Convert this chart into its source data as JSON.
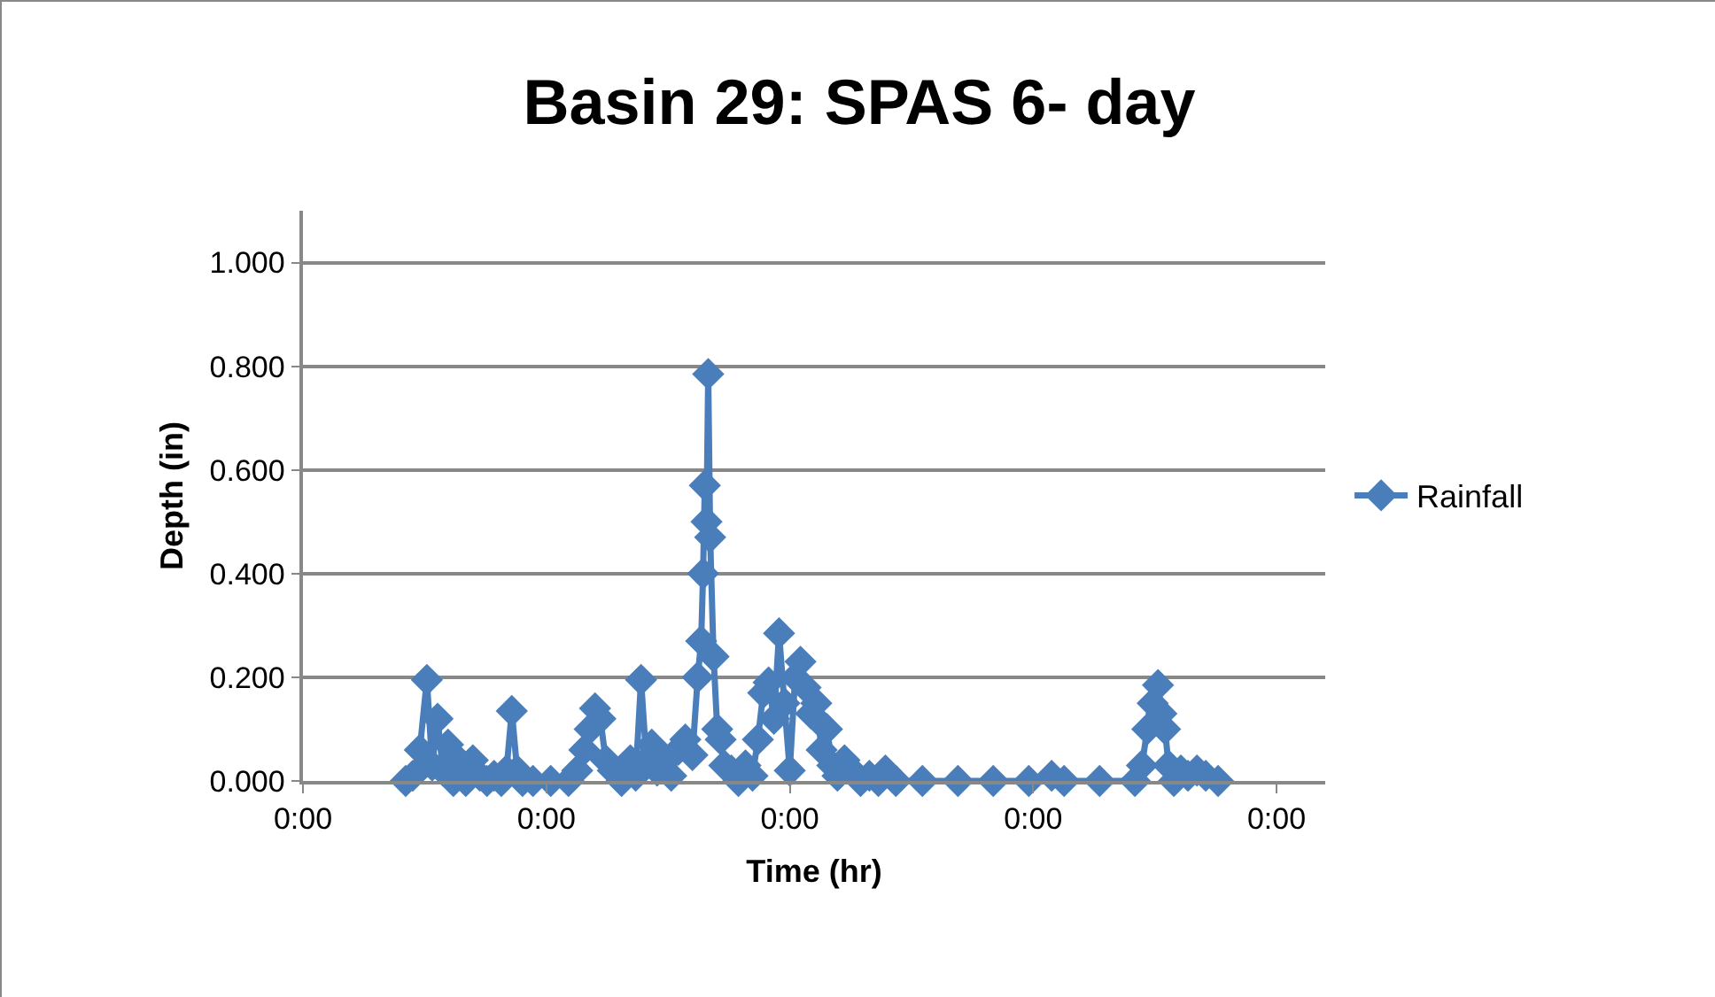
{
  "chart_data": {
    "type": "line",
    "title": "Basin 29: SPAS 6- day",
    "xlabel": "Time (hr)",
    "ylabel": "Depth (in)",
    "x": [
      0.422,
      0.451,
      0.48,
      0.509,
      0.531,
      0.553,
      0.575,
      0.596,
      0.618,
      0.64,
      0.669,
      0.698,
      0.727,
      0.756,
      0.785,
      0.815,
      0.836,
      0.858,
      0.88,
      0.902,
      0.945,
      1.018,
      1.091,
      1.127,
      1.156,
      1.178,
      1.2,
      1.222,
      1.244,
      1.273,
      1.309,
      1.345,
      1.367,
      1.389,
      1.411,
      1.433,
      1.455,
      1.484,
      1.513,
      1.542,
      1.571,
      1.6,
      1.622,
      1.636,
      1.644,
      1.651,
      1.658,
      1.665,
      1.673,
      1.687,
      1.702,
      1.716,
      1.731,
      1.76,
      1.789,
      1.818,
      1.847,
      1.869,
      1.891,
      1.913,
      1.935,
      1.956,
      1.978,
      2.0,
      2.022,
      2.044,
      2.065,
      2.087,
      2.109,
      2.131,
      2.153,
      2.175,
      2.196,
      2.225,
      2.255,
      2.291,
      2.327,
      2.364,
      2.393,
      2.436,
      2.545,
      2.691,
      2.836,
      2.982,
      3.076,
      3.127,
      3.273,
      3.418,
      3.447,
      3.469,
      3.491,
      3.513,
      3.527,
      3.542,
      3.556,
      3.578,
      3.607,
      3.636,
      3.673,
      3.709,
      3.76
    ],
    "series": [
      {
        "name": "Rainfall",
        "color": "#4a7ebb",
        "values": [
          0.0,
          0.01,
          0.06,
          0.195,
          0.03,
          0.12,
          0.02,
          0.07,
          0.0,
          0.04,
          0.0,
          0.04,
          0.01,
          0.0,
          0.01,
          0.0,
          0.02,
          0.135,
          0.02,
          0.0,
          0.0,
          0.0,
          0.0,
          0.02,
          0.06,
          0.1,
          0.14,
          0.12,
          0.04,
          0.02,
          0.0,
          0.04,
          0.01,
          0.195,
          0.04,
          0.07,
          0.02,
          0.04,
          0.01,
          0.06,
          0.08,
          0.05,
          0.2,
          0.27,
          0.4,
          0.57,
          0.5,
          0.785,
          0.47,
          0.24,
          0.1,
          0.08,
          0.03,
          0.02,
          0.0,
          0.03,
          0.01,
          0.08,
          0.17,
          0.19,
          0.12,
          0.285,
          0.15,
          0.02,
          0.2,
          0.23,
          0.18,
          0.13,
          0.15,
          0.06,
          0.1,
          0.03,
          0.01,
          0.04,
          0.02,
          0.0,
          0.01,
          0.0,
          0.02,
          0.0,
          0.0,
          0.0,
          0.0,
          0.0,
          0.01,
          0.0,
          0.0,
          0.0,
          0.03,
          0.1,
          0.15,
          0.185,
          0.13,
          0.1,
          0.03,
          0.0,
          0.02,
          0.01,
          0.02,
          0.01,
          0.0
        ]
      }
    ],
    "xlim": [
      0,
      4.2
    ],
    "xticks": [
      {
        "value": 0,
        "label": "0:00"
      },
      {
        "value": 1,
        "label": "0:00"
      },
      {
        "value": 2,
        "label": "0:00"
      },
      {
        "value": 3,
        "label": "0:00"
      },
      {
        "value": 4,
        "label": "0:00"
      }
    ],
    "ylim": [
      0,
      1.1
    ],
    "yticks": [
      {
        "value": 0,
        "label": "0.000"
      },
      {
        "value": 0.2,
        "label": "0.200"
      },
      {
        "value": 0.4,
        "label": "0.400"
      },
      {
        "value": 0.6,
        "label": "0.600"
      },
      {
        "value": 0.8,
        "label": "0.800"
      },
      {
        "value": 1.0,
        "label": "1.000"
      }
    ],
    "grid": "y",
    "legend": "right",
    "marker": "diamond",
    "line_style": "solid"
  }
}
